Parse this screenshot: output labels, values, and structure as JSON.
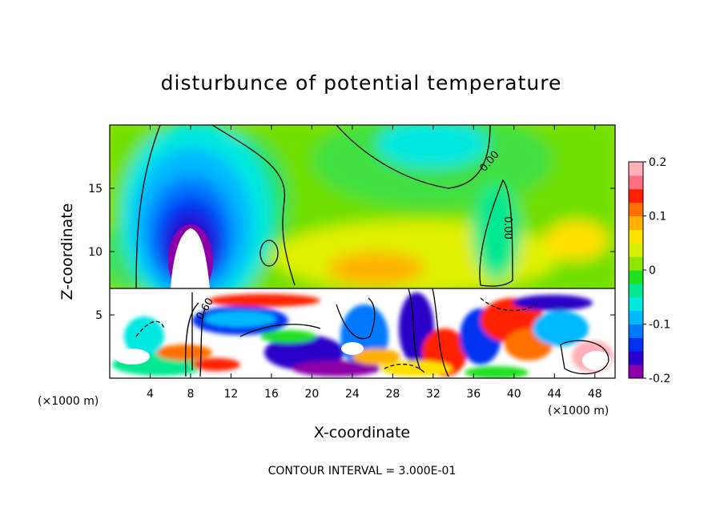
{
  "chart_data": {
    "type": "heatmap",
    "title": "disturbunce of potential temperature",
    "xlabel": "X-coordinate",
    "ylabel": "Z-coordinate",
    "x_unit": "(×1000 m)",
    "z_unit": "(×1000 m)",
    "xlim": [
      0,
      50
    ],
    "ylim": [
      0,
      20
    ],
    "x_ticks": [
      "4",
      "8",
      "12",
      "16",
      "20",
      "24",
      "28",
      "32",
      "36",
      "40",
      "44",
      "48"
    ],
    "y_ticks": [
      "5",
      "10",
      "15"
    ],
    "colorbar": {
      "range": [
        -0.2,
        0.2
      ],
      "tick_labels": [
        "0.2",
        "0.1",
        "0",
        "-0.1",
        "-0.2"
      ],
      "colors": [
        "#8b00a8",
        "#2a00c8",
        "#0030f0",
        "#0078ff",
        "#00b8ff",
        "#00e8e0",
        "#00e890",
        "#20e020",
        "#90e600",
        "#d8f000",
        "#ffe000",
        "#ffb000",
        "#ff7000",
        "#ff2000",
        "#ff7080",
        "#ffb0b8"
      ]
    },
    "contour_labels": [
      "0.00",
      "0.00",
      "0.60"
    ],
    "footer": "CONTOUR INTERVAL = 3.000E-01"
  }
}
